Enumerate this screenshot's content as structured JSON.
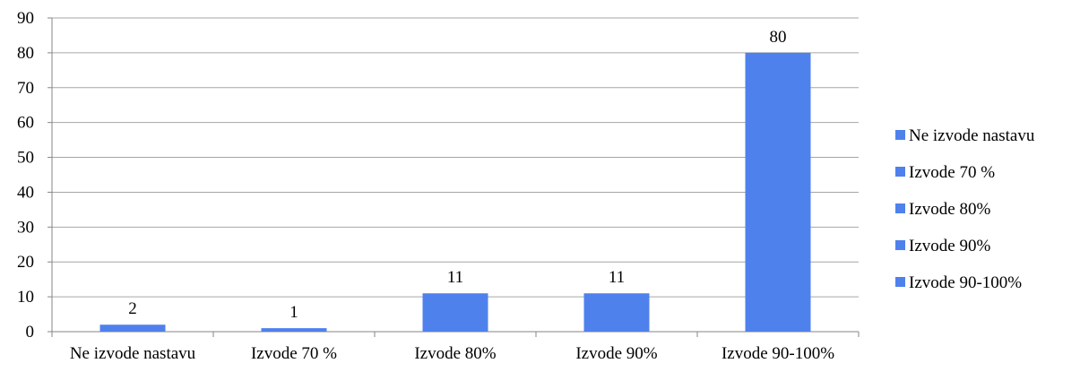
{
  "chart_data": {
    "type": "bar",
    "title": "",
    "xlabel": "",
    "ylabel": "",
    "categories": [
      "Ne izvode nastavu",
      "Izvode 70 %",
      "Izvode 80%",
      "Izvode 90%",
      "Izvode 90-100%"
    ],
    "series": [
      {
        "values": [
          2,
          1,
          11,
          11,
          80
        ],
        "color": "#4f81ec"
      }
    ],
    "data_labels": [
      "2",
      "1",
      "11",
      "11",
      "80"
    ],
    "ylim": [
      0,
      90
    ],
    "y_ticks": [
      "0",
      "10",
      "20",
      "30",
      "40",
      "50",
      "60",
      "70",
      "80",
      "90"
    ],
    "grid": true,
    "legend": {
      "position": "right",
      "entries": [
        "Ne izvode nastavu",
        "Izvode 70 %",
        "Izvode 80%",
        "Izvode 90%",
        "Izvode 90-100%"
      ]
    }
  }
}
